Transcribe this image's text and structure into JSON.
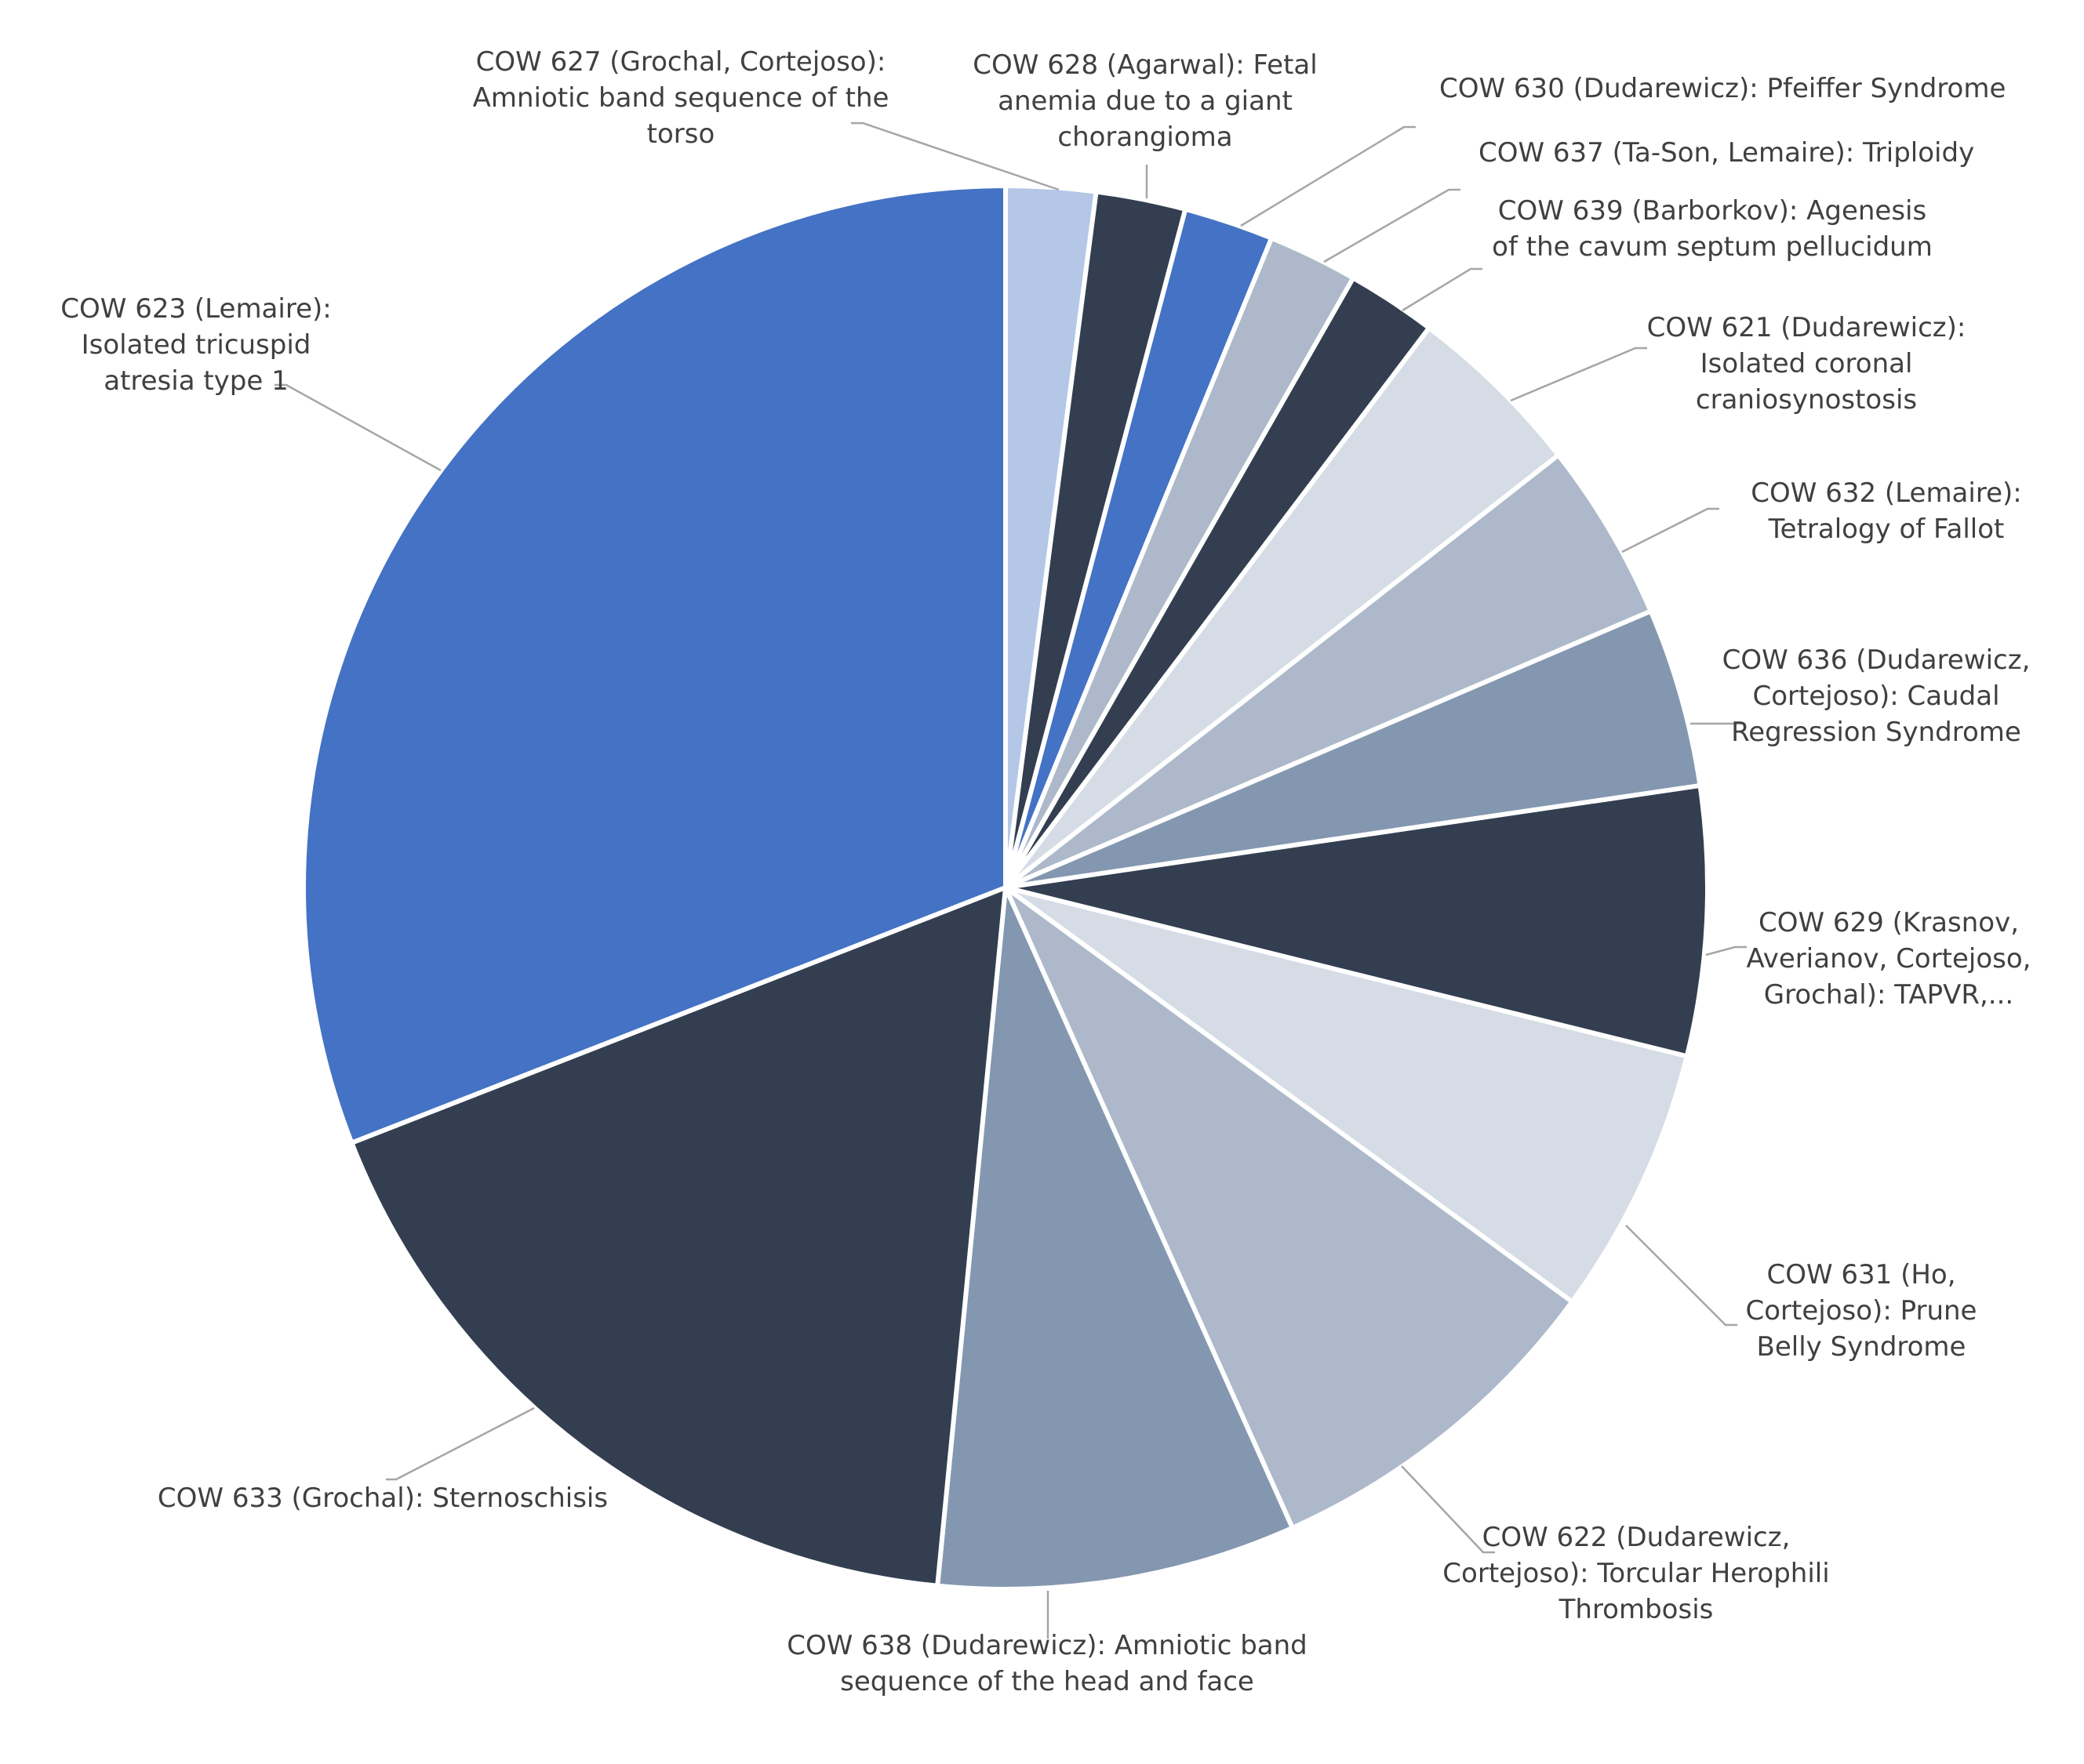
{
  "chart_data": {
    "type": "pie",
    "title": "",
    "legend": "none (labels drawn with leader lines)",
    "slices": [
      {
        "name": "COW 627",
        "label_lines": [
          "COW 627 (Grochal, Cortejoso):",
          "Amniotic band sequence of the",
          "torso"
        ],
        "value": 2,
        "color": "#b4c7e7"
      },
      {
        "name": "COW 628",
        "label_lines": [
          "COW 628 (Agarwal): Fetal",
          "anemia due to a giant",
          "chorangioma"
        ],
        "value": 2,
        "color": "#333f50"
      },
      {
        "name": "COW 630",
        "label_lines": [
          "COW 630 (Dudarewicz): Pfeiffer Syndrome"
        ],
        "value": 2,
        "color": "#4472c4"
      },
      {
        "name": "COW 637",
        "label_lines": [
          "COW 637 (Ta-Son, Lemaire): Triploidy"
        ],
        "value": 2,
        "color": "#adb9ca"
      },
      {
        "name": "COW 639",
        "label_lines": [
          "COW 639 (Barborkov): Agenesis",
          "of the cavum septum pellucidum"
        ],
        "value": 2,
        "color": "#333f50"
      },
      {
        "name": "COW 621",
        "label_lines": [
          "COW 621 (Dudarewicz):",
          "Isolated coronal",
          "craniosynostosis"
        ],
        "value": 4,
        "color": "#d6dce5"
      },
      {
        "name": "COW 632",
        "label_lines": [
          "COW 632 (Lemaire):",
          "Tetralogy of Fallot"
        ],
        "value": 4,
        "color": "#adb9ca"
      },
      {
        "name": "COW 636",
        "label_lines": [
          "COW 636 (Dudarewicz,",
          "Cortejoso): Caudal",
          "Regression Syndrome"
        ],
        "value": 4,
        "color": "#8497b0"
      },
      {
        "name": "COW 629",
        "label_lines": [
          "COW 629 (Krasnov,",
          "Averianov, Cortejoso,",
          "Grochal): TAPVR,..."
        ],
        "value": 6,
        "color": "#333f50"
      },
      {
        "name": "COW 631",
        "label_lines": [
          "COW 631 (Ho,",
          "Cortejoso): Prune",
          "Belly Syndrome"
        ],
        "value": 6,
        "color": "#d6dce5"
      },
      {
        "name": "COW 622",
        "label_lines": [
          "COW 622 (Dudarewicz,",
          "Cortejoso): Torcular Herophili",
          "Thrombosis"
        ],
        "value": 8,
        "color": "#adb9ca"
      },
      {
        "name": "COW 638",
        "label_lines": [
          "COW 638 (Dudarewicz): Amniotic band",
          "sequence of the head and face"
        ],
        "value": 8,
        "color": "#8497b0"
      },
      {
        "name": "COW 633",
        "label_lines": [
          "COW 633 (Grochal): Sternoschisis"
        ],
        "value": 17,
        "color": "#333f50"
      },
      {
        "name": "COW 623",
        "label_lines": [
          "COW 623 (Lemaire):",
          "Isolated tricuspid",
          "atresia type 1"
        ],
        "value": 30,
        "color": "#4472c4"
      }
    ]
  }
}
